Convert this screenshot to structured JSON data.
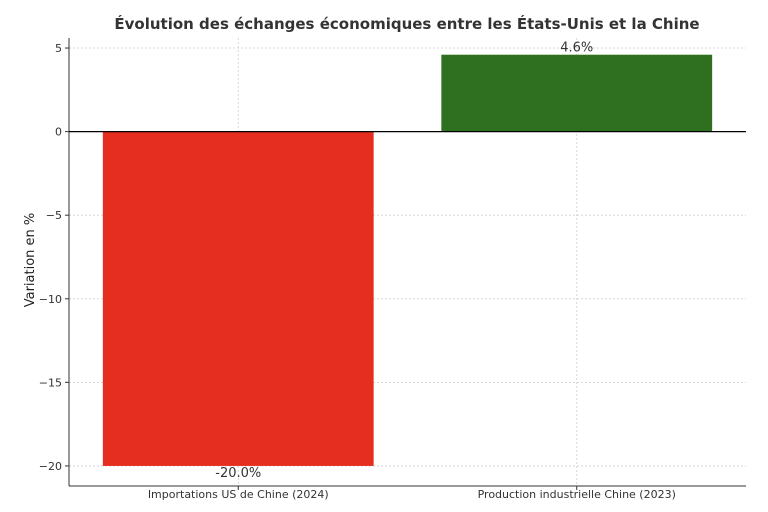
{
  "chart_data": {
    "type": "bar",
    "title": "Évolution des échanges économiques entre les États-Unis et la Chine",
    "xlabel": "",
    "ylabel": "Variation en %",
    "categories": [
      "Importations US de Chine (2024)",
      "Production industrielle Chine (2023)"
    ],
    "values": [
      -20.0,
      4.6
    ],
    "data_labels": [
      "-20.0%",
      "4.6%"
    ],
    "colors": [
      "#e62e20",
      "#2e7020"
    ],
    "ylim": [
      -21.2,
      5.6
    ],
    "yticks": [
      5,
      0,
      -5,
      -10,
      -15,
      -20
    ],
    "ytick_labels": [
      "5",
      "0",
      "−5",
      "−10",
      "−15",
      "−20"
    ],
    "grid": true,
    "legend": "none"
  }
}
